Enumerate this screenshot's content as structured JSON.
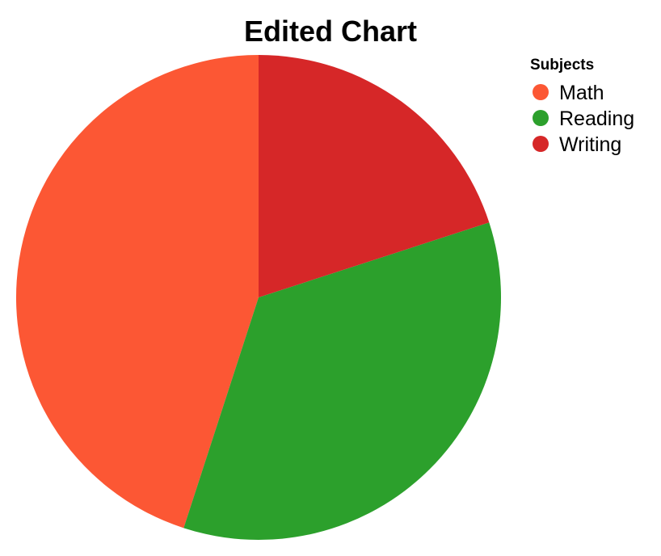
{
  "chart_data": {
    "type": "pie",
    "title": "Edited Chart",
    "legend": {
      "title": "Subjects",
      "placement": "top-right"
    },
    "categories": [
      "Math",
      "Reading",
      "Writing"
    ],
    "values": [
      45,
      35,
      20
    ],
    "colors": [
      "#fc5734",
      "#2ca02c",
      "#d62728"
    ],
    "start_angle_deg": -90,
    "direction": "counterclockwise"
  }
}
